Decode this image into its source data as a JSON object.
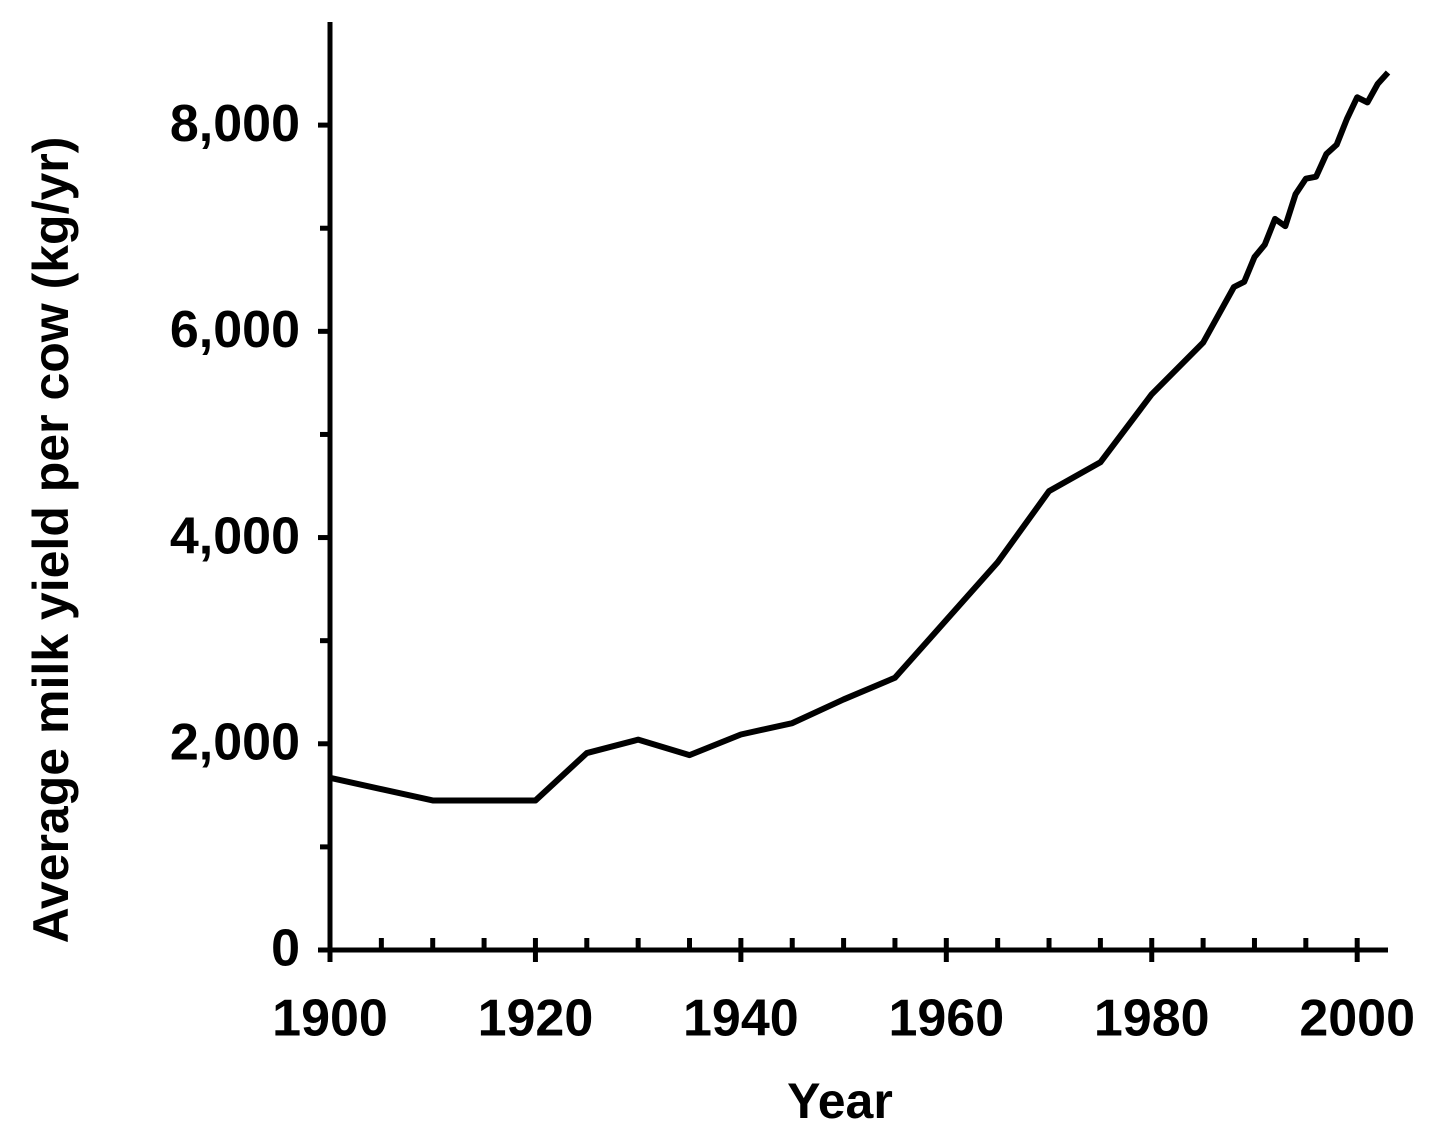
{
  "chart_data": {
    "type": "line",
    "xlabel": "Year",
    "ylabel": "Average milk yield per cow (kg/yr)",
    "xlim": [
      1900,
      2003
    ],
    "ylim": [
      0,
      9000
    ],
    "xticks": [
      1900,
      1920,
      1940,
      1960,
      1980,
      2000
    ],
    "xminorticks": [
      1905,
      1910,
      1915,
      1925,
      1930,
      1935,
      1945,
      1950,
      1955,
      1965,
      1970,
      1975,
      1985,
      1990,
      1995
    ],
    "yticks": [
      0,
      {
        "value": 2000,
        "label": "2,000"
      },
      {
        "value": 4000,
        "label": "4,000"
      },
      {
        "value": 6000,
        "label": "6,000"
      },
      {
        "value": 8000,
        "label": "8,000"
      }
    ],
    "yminorticks": [
      1000,
      3000,
      5000,
      7000
    ],
    "color": "#000000",
    "x": [
      1900,
      1910,
      1920,
      1925,
      1930,
      1935,
      1940,
      1945,
      1950,
      1955,
      1960,
      1965,
      1970,
      1975,
      1980,
      1985,
      1988,
      1989,
      1990,
      1991,
      1992,
      1993,
      1994,
      1995,
      1996,
      1997,
      1998,
      1999,
      2000,
      2001,
      2002,
      2003
    ],
    "values": [
      1670,
      1450,
      1450,
      1910,
      2040,
      1890,
      2090,
      2200,
      2430,
      2640,
      3200,
      3760,
      4450,
      4730,
      5390,
      5890,
      6430,
      6480,
      6720,
      6840,
      7090,
      7020,
      7330,
      7480,
      7500,
      7720,
      7810,
      8060,
      8270,
      8220,
      8400,
      8510
    ]
  }
}
